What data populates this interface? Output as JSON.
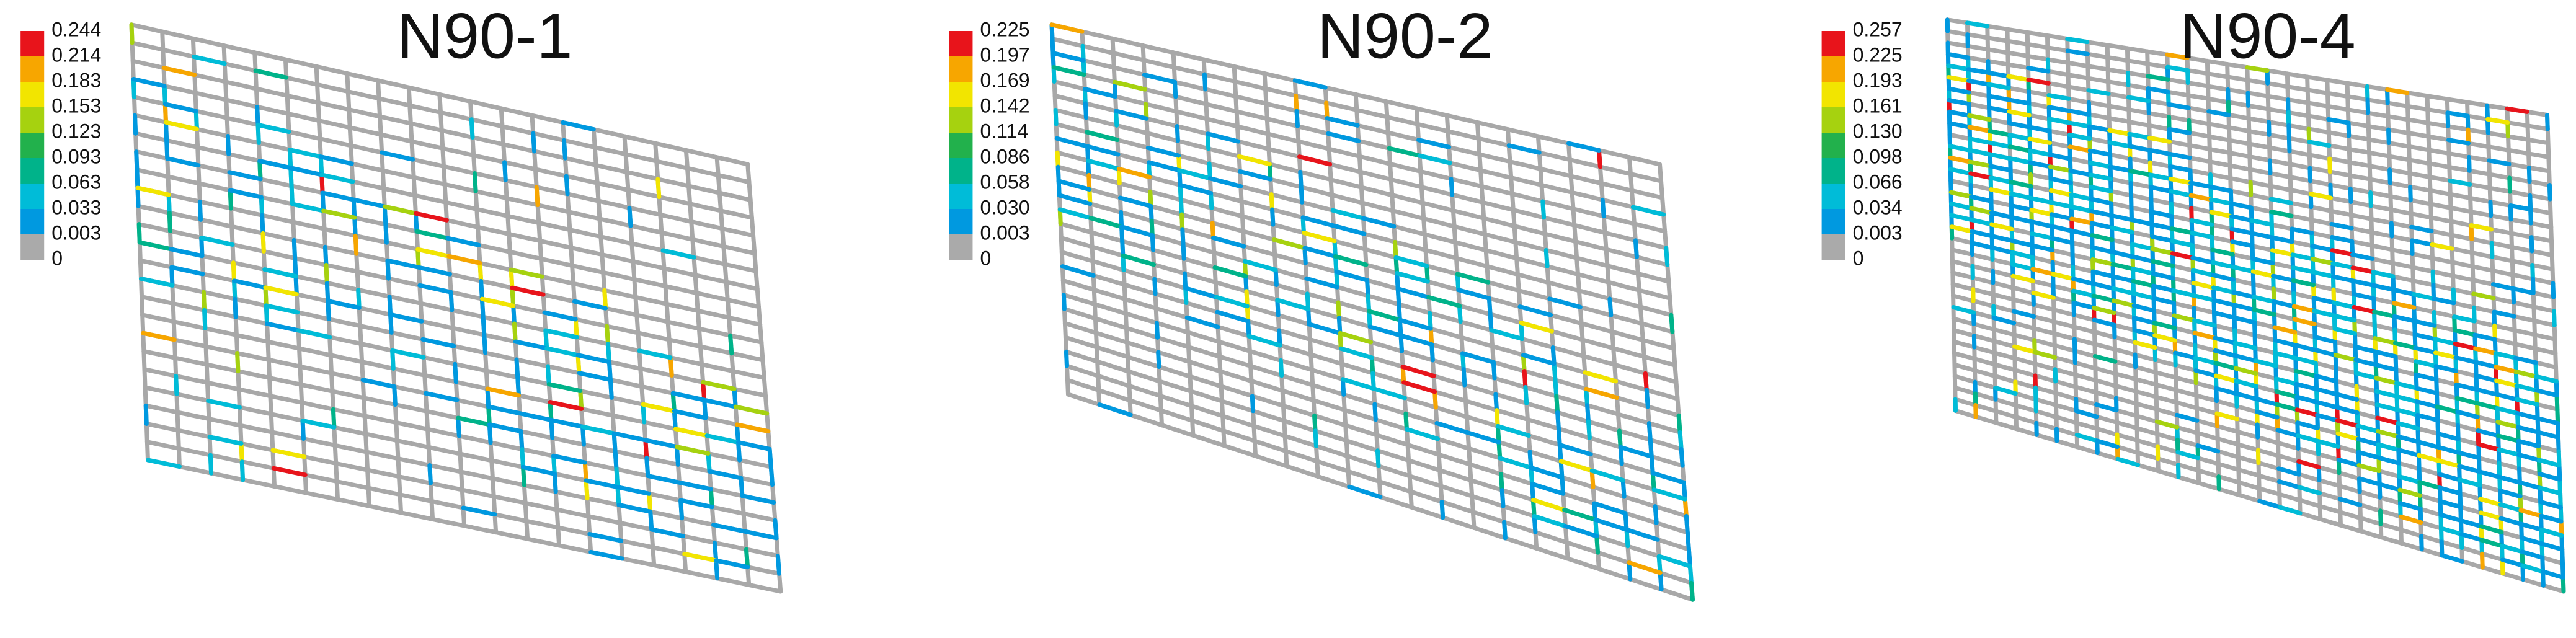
{
  "panels": [
    {
      "title": "N90-1",
      "legend": {
        "labels": [
          "0.244",
          "0.214",
          "0.183",
          "0.153",
          "0.123",
          "0.093",
          "0.063",
          "0.033",
          "0.003",
          "0"
        ],
        "colors": [
          "#e8141b",
          "#f7a600",
          "#f2e500",
          "#a6d20f",
          "#22b14c",
          "#00b38a",
          "#00bcd8",
          "#0099e0",
          "#aaaaaa"
        ]
      }
    },
    {
      "title": "N90-2",
      "legend": {
        "labels": [
          "0.225",
          "0.197",
          "0.169",
          "0.142",
          "0.114",
          "0.086",
          "0.058",
          "0.030",
          "0.003",
          "0"
        ],
        "colors": [
          "#e8141b",
          "#f7a600",
          "#f2e500",
          "#a6d20f",
          "#22b14c",
          "#00b38a",
          "#00bcd8",
          "#0099e0",
          "#aaaaaa"
        ]
      }
    },
    {
      "title": "N90-4",
      "legend": {
        "labels": [
          "0.257",
          "0.225",
          "0.193",
          "0.161",
          "0.130",
          "0.098",
          "0.066",
          "0.034",
          "0.003",
          "0"
        ],
        "colors": [
          "#e8141b",
          "#f7a600",
          "#f2e500",
          "#a6d20f",
          "#22b14c",
          "#00b38a",
          "#00bcd8",
          "#0099e0",
          "#aaaaaa"
        ]
      }
    }
  ]
}
